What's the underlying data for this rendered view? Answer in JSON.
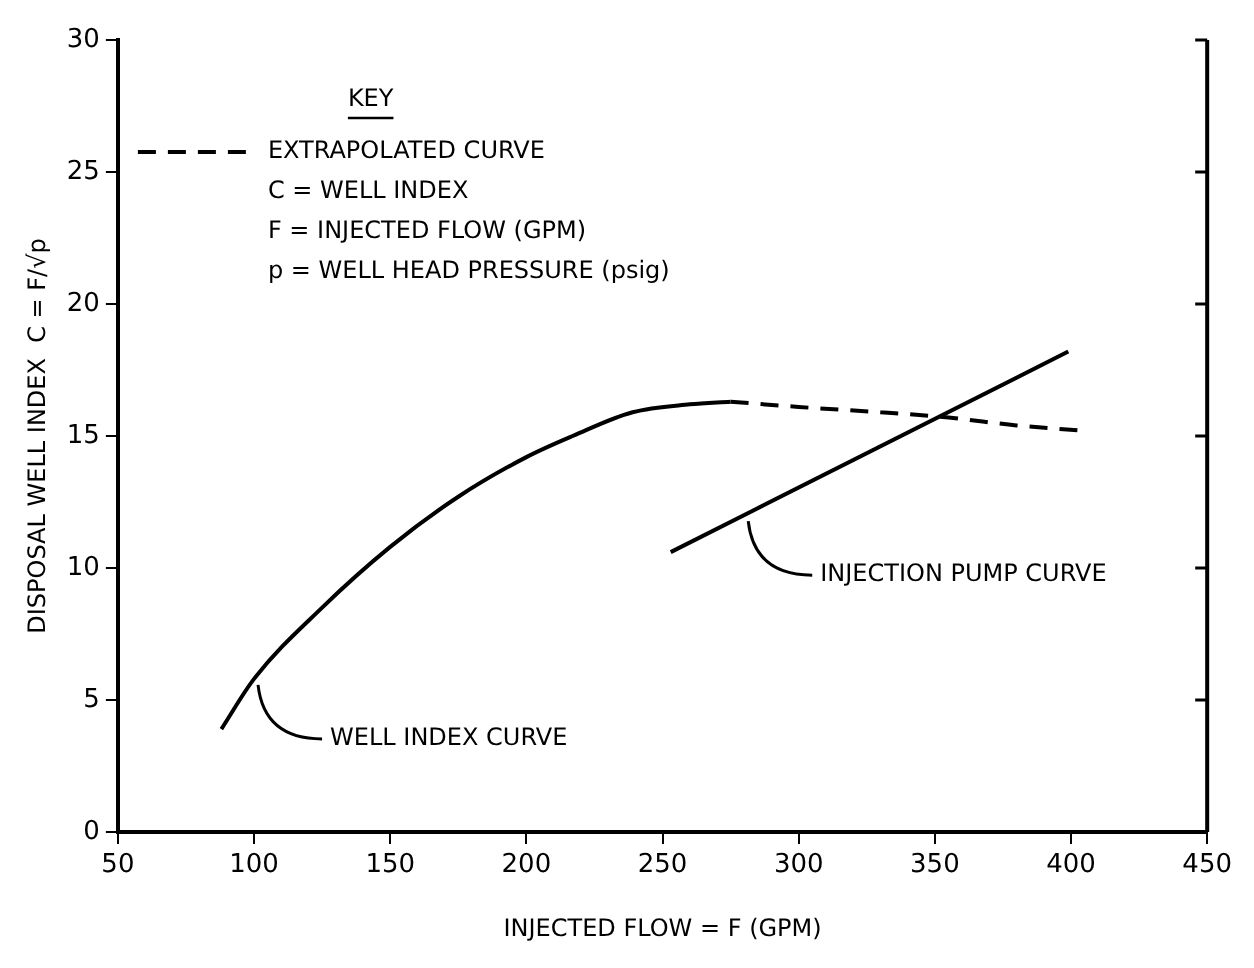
{
  "chart_data": {
    "type": "line",
    "xlabel": "INJECTED FLOW = F (GPM)",
    "ylabel": "DISPOSAL WELL INDEX  C = F/√p",
    "legend_title": "KEY",
    "legend": "top left",
    "annotations": [
      "C = WELL INDEX",
      "F = INJECTED FLOW (GPM)",
      "p = WELL HEAD PRESSURE (psig)",
      {
        "text": "WELL INDEX CURVE",
        "x": 100,
        "y": 5.8
      },
      {
        "text": "INJECTION PUMP CURVE",
        "x": 280,
        "y": 12
      }
    ],
    "xlim": [
      50,
      450
    ],
    "xticks": [
      50,
      100,
      150,
      200,
      250,
      300,
      350,
      400,
      450
    ],
    "ylim": [
      0,
      30
    ],
    "yticks": [
      0,
      5,
      10,
      15,
      20,
      25,
      30
    ],
    "grid": false,
    "marker": "none",
    "series": [
      {
        "color": "#000000",
        "line_style": "solid",
        "x": [
          88,
          100,
          125,
          150,
          175,
          200,
          217,
          239,
          260,
          275
        ],
        "values": [
          3.9,
          5.8,
          8.5,
          10.8,
          12.7,
          14.2,
          15.0,
          15.9,
          16.2,
          16.3
        ]
      },
      {
        "name": "EXTRAPOLATED CURVE",
        "color": "#000000",
        "line_style": "dashed",
        "x": [
          275,
          300,
          330,
          355,
          380,
          405
        ],
        "values": [
          16.3,
          16.1,
          15.9,
          15.7,
          15.4,
          15.2
        ]
      },
      {
        "color": "#000000",
        "line_style": "solid",
        "x": [
          253,
          399
        ],
        "values": [
          10.6,
          18.2
        ]
      }
    ]
  }
}
